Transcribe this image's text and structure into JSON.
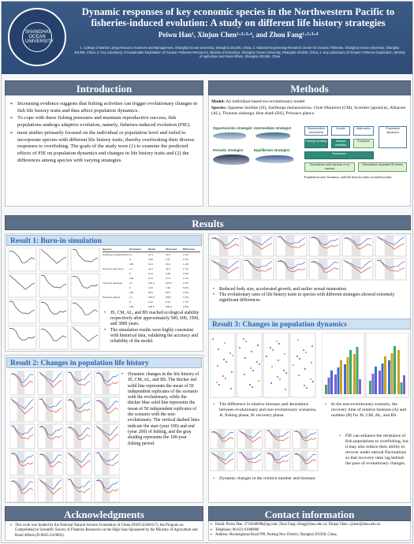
{
  "header": {
    "logo_text": "SHANGHAI OCEAN UNIVERSITY",
    "title": "Dynamic responses of key economic species in the Northwestern Pacific to fisheries-induced evolution: A study on different life history strategies",
    "authors": "Peiwu Han¹, Xinjun Chen¹·²·³·⁴, and Zhou Fang¹·²·³·⁴",
    "affiliations": "1. College of Marine Living Resource Sciences and Management, Shanghai Ocean University, Shanghai 201306, China; 2. National Engineering Research Center for Oceanic Fisheries, Shanghai Ocean University, Shanghai 201306, China; 3. Key Laboratory of Sustainable Exploitation of Oceanic Fisheries Resources, Ministry of Education, Shanghai Ocean University, Shanghai 201306, China; 4. Key Laboratory of Oceanic Fisheries Exploration, Ministry of Agriculture and Rural Affairs, Shanghai 201306, China"
  },
  "intro": {
    "heading": "Introduction",
    "bullets": [
      "Increasing evidence suggests that fishing activities can trigger evolutionary changes in fish life history traits and thus affect population dynamics.",
      "To cope with these fishing pressures and maintain reproductive success, fish populations undergo adaptive evolution, namely, fisheries-induced evolution (FIE).",
      "most studies primarily focused on the individual or population level and failed to incorporate species with different life history traits, thereby overlooking their diverse responses to overfishing. The goals of the study were (1) to examine the predicted effects of FIE on population dynamics  and changes in life history traits and (2) the differences among species with varying strategies."
    ]
  },
  "methods": {
    "heading": "Methods",
    "model_label": "Model:",
    "model_text": "An individual-based eco-evolutionary model",
    "species_label": "Species:",
    "species_text": "Japanese Sardine (JS), Sardinops melanostictus, Chub Mackerel (CM), Scomber japonicus, Albacore (AL), Thunnus alalunga, blue shark (BS), Prionace glauca",
    "strategies": [
      "Opportunistic strategist",
      "Intermediate strategist",
      "Periodic strategist",
      "Equilibrium strategist"
    ],
    "flow_boxes": [
      "Reproductive investment",
      "Growth",
      "Maturation",
      "Fishing mortality",
      "Natural mortality",
      "Evolution",
      "Population dynamics",
      "Parameter"
    ],
    "flow_notes": [
      "Simulations with harvest or no harvest",
      "Population size, biomass, and life history traits recorded yearly",
      "Simulations repeated 50 times"
    ]
  },
  "results": {
    "heading": "Results",
    "r1_heading": "Result 1: Burn-in simulation",
    "r1_bullets": [
      "JS, CM, AL, and BS reached ecological stability respectively after approximately 500, 600, 1500, and 3000 years.",
      "The simulation results were highly consistent with historical data, validating the accuracy and reliability of the model."
    ],
    "r1_table": {
      "headers": [
        "Species",
        "Parameter",
        "Model",
        "Observed",
        "Difference"
      ],
      "rows": [
        [
          "Sardinops melanostictus",
          "L∞",
          "24.1",
          "24.4",
          "1.2%"
        ],
        [
          "",
          "K",
          "0.48",
          "0.47",
          "2.1%"
        ],
        [
          "",
          "L50",
          "16.3",
          "16.5",
          "1.2%"
        ],
        [
          "Scomber japonicus",
          "L∞",
          "41.2",
          "41.9",
          "1.7%"
        ],
        [
          "",
          "K",
          "0.31",
          "0.30",
          "3.3%"
        ],
        [
          "",
          "L50",
          "27.8",
          "27.5",
          "1.1%"
        ],
        [
          "Thunnus alalunga",
          "L∞",
          "118.3",
          "119.5",
          "1.0%"
        ],
        [
          "",
          "K",
          "0.19",
          "0.18",
          "5.6%"
        ],
        [
          "",
          "L50",
          "88.2",
          "90.0",
          "2.0%"
        ],
        [
          "Prionace glauca",
          "L∞",
          "310.0",
          "305.1",
          "1.6%"
        ],
        [
          "",
          "K",
          "0.12",
          "0.13",
          "7.7%"
        ],
        [
          "",
          "L50",
          "198.5",
          "200.0",
          "0.8%"
        ]
      ]
    },
    "r2_heading": "Result 2: Changes in population life history",
    "r2_text": "Dynamic changes in the life history of JS, CM, AL, and BS. The thicker red solid line represents the mean of 50 independent replicates of the scenario with the evolutionary, while the thicker blue solid line represents the mean of 50 independent replicates of the scenario with the non-evolutionary. The vertical dashed lines indicate the start (year 100) and end (year 200) of fishing, and the gray shading represents the 100-year fishing period.",
    "r_top_bullets": [
      "Reduced body size, accelerated growth, and earlier sexual maturation.",
      "The evolutionary rates of life history traits in species with different strategies showed extremely significant differences."
    ],
    "r3_heading": "Result 3: Changes in population dynamics",
    "r3_left": "The difference in relative biomass and abundance between evolutionary and non-evolutionary scenarios, A: fishing phase, B: recovery phase.",
    "r3_right": "In the non-evolutionary scenario, the recovery time of relative biomass (A) and number (B) for JS, CM, AL, and BS.",
    "r3_fie": "FIE can enhance the resistance of fish populations to overfishing, but it may also reduce their ability to recover under natural fluctuations so that recovery rates lag behind the pace of evolutionary changes.",
    "r3_caption": "Dynamic changes in the relative number and biomass"
  },
  "ack": {
    "heading": "Acknowledgments",
    "text": "This work was funded by the National Natural Science Foundation of China (NSFC42306117), the Program on Comprehensive Scientific Survey of Fisheries Resources on the High Seas Sponsored by the Ministry of Agriculture and Rural Affairs (D-8025-24-0002)."
  },
  "contact": {
    "heading": "Contact information",
    "items": [
      "Email: Peiwu Han: 2718448098@qq.com; Zhou Fang: zfang@shou.edu.cn; Xinjun Chen: xjchen@shou.edu.cn",
      "Telephone: 86-021-61900000",
      "Address: Huchenghuan Road 999, Pudong New District, Shanghai 201306, China."
    ]
  },
  "colors": {
    "header_bg": "#34517f",
    "section_head": "#5c6f87",
    "sub_head": "#cfe0f0",
    "sub_head_text": "#2a65b0",
    "evo_red": "#e0473a",
    "nonevo_blue": "#3b6fd0"
  },
  "chart_data": {
    "type": "line",
    "series": [
      {
        "name": "evolutionary",
        "values": [
          1.0,
          0.98,
          0.9,
          0.8,
          0.72,
          0.7,
          0.74,
          0.78,
          0.8
        ]
      },
      {
        "name": "non-evolutionary",
        "values": [
          1.0,
          1.0,
          0.94,
          0.86,
          0.8,
          0.82,
          0.88,
          0.94,
          0.98
        ]
      }
    ]
  }
}
